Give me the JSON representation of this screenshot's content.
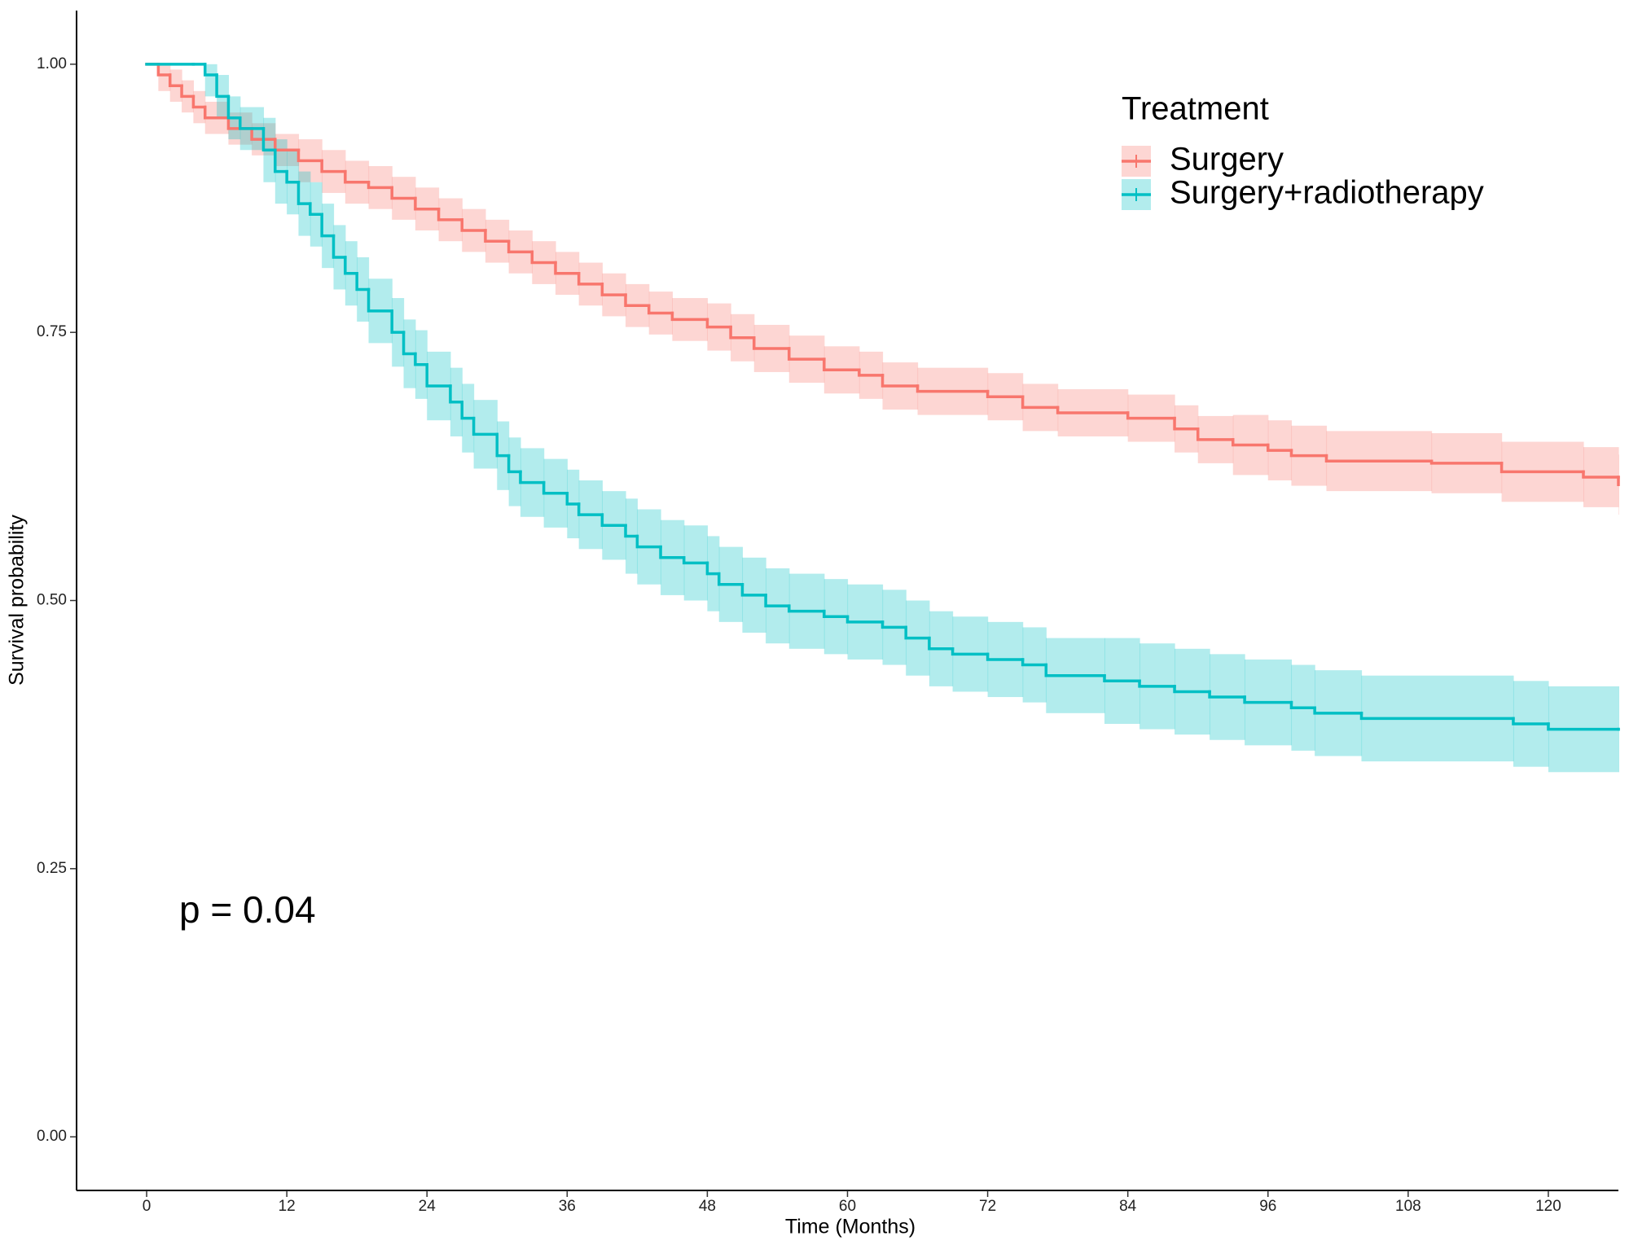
{
  "chart_data": {
    "type": "step",
    "x_label": "Time (Months)",
    "y_label": "Survival probability",
    "annotation": "p = 0.04",
    "legend_title": "Treatment",
    "legend_position": "top-right",
    "xlim": [
      -6,
      126
    ],
    "ylim": [
      -0.05,
      1.05
    ],
    "xticks": [
      0,
      12,
      24,
      36,
      48,
      60,
      72,
      84,
      96,
      108,
      120
    ],
    "yticks": [
      {
        "value": 0,
        "label": "0.00"
      },
      {
        "value": 0.25,
        "label": "0.25"
      },
      {
        "value": 0.5,
        "label": "0.50"
      },
      {
        "value": 0.75,
        "label": "0.75"
      },
      {
        "value": 1,
        "label": "1.00"
      }
    ],
    "grid": false,
    "series": [
      {
        "name": "Surgery",
        "color": "#F8766D",
        "x": [
          0,
          1,
          2,
          3,
          4,
          5,
          7,
          9,
          11,
          13,
          15,
          17,
          19,
          21,
          23,
          25,
          27,
          29,
          31,
          33,
          35,
          37,
          39,
          41,
          43,
          45,
          48,
          50,
          52,
          55,
          58,
          61,
          63,
          66,
          72,
          75,
          78,
          84,
          88,
          90,
          93,
          96,
          98,
          101,
          110,
          116,
          123,
          126
        ],
        "values": [
          1,
          0.99,
          0.98,
          0.97,
          0.96,
          0.95,
          0.94,
          0.93,
          0.92,
          0.91,
          0.9,
          0.89,
          0.885,
          0.875,
          0.865,
          0.855,
          0.845,
          0.835,
          0.825,
          0.815,
          0.805,
          0.795,
          0.785,
          0.775,
          0.768,
          0.762,
          0.755,
          0.745,
          0.735,
          0.725,
          0.715,
          0.71,
          0.7,
          0.695,
          0.69,
          0.68,
          0.675,
          0.67,
          0.66,
          0.65,
          0.645,
          0.64,
          0.635,
          0.63,
          0.628,
          0.62,
          0.615,
          0.608
        ],
        "lower": [
          1,
          0.975,
          0.965,
          0.955,
          0.945,
          0.935,
          0.925,
          0.915,
          0.905,
          0.89,
          0.88,
          0.87,
          0.865,
          0.855,
          0.845,
          0.835,
          0.825,
          0.815,
          0.805,
          0.795,
          0.785,
          0.775,
          0.765,
          0.755,
          0.748,
          0.742,
          0.733,
          0.723,
          0.713,
          0.703,
          0.693,
          0.688,
          0.678,
          0.673,
          0.668,
          0.658,
          0.653,
          0.648,
          0.638,
          0.628,
          0.617,
          0.612,
          0.607,
          0.602,
          0.6,
          0.592,
          0.587,
          0.58
        ],
        "upper": [
          1,
          1,
          0.995,
          0.985,
          0.975,
          0.965,
          0.955,
          0.945,
          0.935,
          0.93,
          0.92,
          0.91,
          0.905,
          0.895,
          0.885,
          0.875,
          0.865,
          0.855,
          0.845,
          0.835,
          0.825,
          0.815,
          0.805,
          0.795,
          0.788,
          0.782,
          0.777,
          0.767,
          0.757,
          0.747,
          0.737,
          0.732,
          0.722,
          0.717,
          0.712,
          0.702,
          0.697,
          0.692,
          0.682,
          0.672,
          0.673,
          0.668,
          0.663,
          0.658,
          0.656,
          0.648,
          0.643,
          0.636
        ]
      },
      {
        "name": "Surgery+radiotherapy",
        "color": "#00BFC4",
        "x": [
          0,
          4,
          5,
          6,
          7,
          8,
          10,
          11,
          12,
          13,
          14,
          15,
          16,
          17,
          18,
          19,
          21,
          22,
          23,
          24,
          26,
          27,
          28,
          30,
          31,
          32,
          34,
          36,
          37,
          39,
          41,
          42,
          44,
          46,
          48,
          49,
          51,
          53,
          55,
          58,
          60,
          63,
          65,
          67,
          69,
          72,
          75,
          77,
          82,
          85,
          88,
          91,
          94,
          98,
          100,
          104,
          117,
          120,
          126
        ],
        "values": [
          1,
          1,
          0.99,
          0.97,
          0.95,
          0.94,
          0.92,
          0.9,
          0.89,
          0.87,
          0.86,
          0.84,
          0.82,
          0.805,
          0.79,
          0.77,
          0.75,
          0.73,
          0.72,
          0.7,
          0.685,
          0.67,
          0.655,
          0.635,
          0.62,
          0.61,
          0.6,
          0.59,
          0.58,
          0.57,
          0.56,
          0.55,
          0.54,
          0.535,
          0.525,
          0.515,
          0.505,
          0.495,
          0.49,
          0.485,
          0.48,
          0.475,
          0.465,
          0.455,
          0.45,
          0.445,
          0.44,
          0.43,
          0.425,
          0.42,
          0.415,
          0.41,
          0.405,
          0.4,
          0.395,
          0.39,
          0.385,
          0.38,
          0.38
        ],
        "lower": [
          1,
          1,
          0.97,
          0.95,
          0.93,
          0.92,
          0.89,
          0.87,
          0.86,
          0.84,
          0.83,
          0.81,
          0.79,
          0.775,
          0.76,
          0.74,
          0.718,
          0.698,
          0.688,
          0.668,
          0.653,
          0.638,
          0.623,
          0.603,
          0.588,
          0.578,
          0.568,
          0.558,
          0.548,
          0.538,
          0.525,
          0.515,
          0.505,
          0.5,
          0.49,
          0.48,
          0.47,
          0.46,
          0.455,
          0.45,
          0.445,
          0.44,
          0.43,
          0.42,
          0.415,
          0.41,
          0.405,
          0.395,
          0.385,
          0.38,
          0.375,
          0.37,
          0.365,
          0.36,
          0.355,
          0.35,
          0.345,
          0.34,
          0.34
        ],
        "upper": [
          1,
          1,
          1,
          0.99,
          0.97,
          0.96,
          0.95,
          0.93,
          0.92,
          0.9,
          0.89,
          0.87,
          0.85,
          0.835,
          0.82,
          0.8,
          0.782,
          0.762,
          0.752,
          0.732,
          0.717,
          0.702,
          0.687,
          0.667,
          0.652,
          0.642,
          0.632,
          0.622,
          0.612,
          0.602,
          0.595,
          0.585,
          0.575,
          0.57,
          0.56,
          0.55,
          0.54,
          0.53,
          0.525,
          0.52,
          0.515,
          0.51,
          0.5,
          0.49,
          0.485,
          0.48,
          0.475,
          0.465,
          0.465,
          0.46,
          0.455,
          0.45,
          0.445,
          0.44,
          0.435,
          0.43,
          0.425,
          0.42,
          0.42
        ]
      }
    ]
  }
}
